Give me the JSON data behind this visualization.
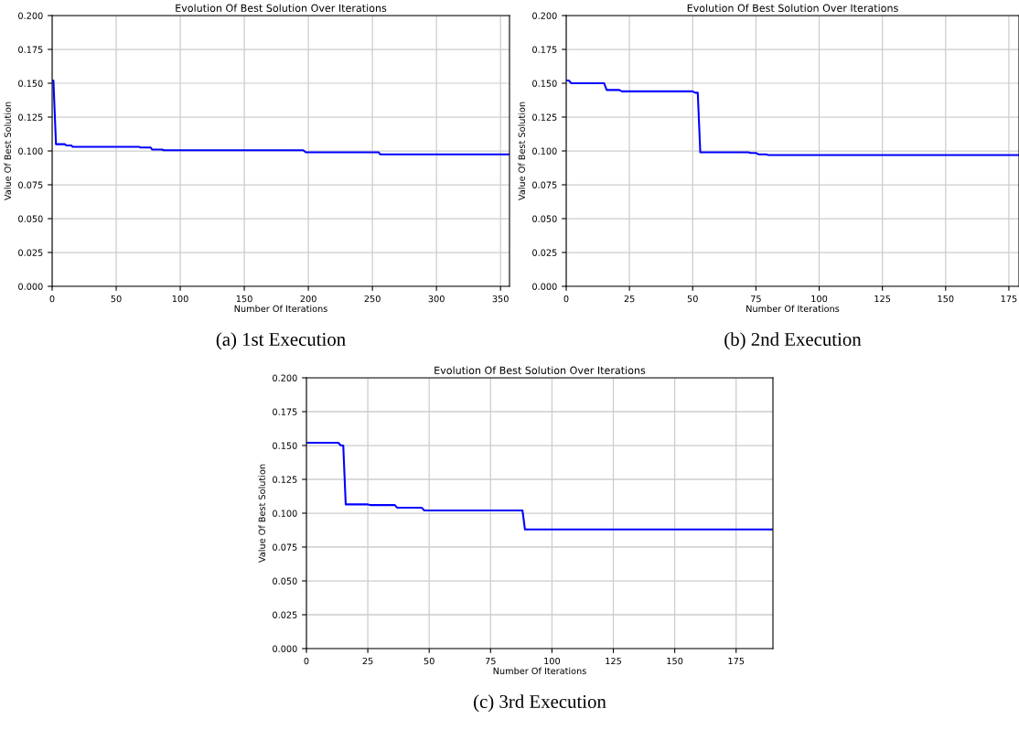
{
  "chart_data": [
    {
      "type": "line",
      "title": "Evolution Of Best Solution Over Iterations",
      "xlabel": "Number Of Iterations",
      "ylabel": "Value Of Best Solution",
      "xlim": [
        0,
        357
      ],
      "ylim": [
        0,
        0.2
      ],
      "xticks": [
        0,
        50,
        100,
        150,
        200,
        250,
        300,
        350
      ],
      "yticks": [
        {
          "value": 0,
          "label": "0.000"
        },
        {
          "value": 0.025,
          "label": "0.025"
        },
        {
          "value": 0.05,
          "label": "0.050"
        },
        {
          "value": 0.075,
          "label": "0.075"
        },
        {
          "value": 0.1,
          "label": "0.100"
        },
        {
          "value": 0.125,
          "label": "0.125"
        },
        {
          "value": 0.15,
          "label": "0.150"
        },
        {
          "value": 0.175,
          "label": "0.175"
        },
        {
          "value": 0.2,
          "label": "0.200"
        }
      ],
      "grid": true,
      "annotations": [
        "(a) 1st Execution"
      ],
      "series": [
        {
          "color": "#0000ff",
          "x": [
            0,
            1,
            3,
            10,
            11,
            15,
            16,
            68,
            69,
            77,
            78,
            86,
            87,
            196,
            198,
            255,
            256,
            357
          ],
          "values": [
            0.152,
            0.152,
            0.105,
            0.105,
            0.104,
            0.104,
            0.103,
            0.103,
            0.1025,
            0.1025,
            0.101,
            0.101,
            0.1005,
            0.1005,
            0.099,
            0.099,
            0.0975,
            0.0975
          ]
        }
      ]
    },
    {
      "type": "line",
      "title": "Evolution Of Best Solution Over Iterations",
      "xlabel": "Number Of Iterations",
      "ylabel": "Value Of Best Solution",
      "xlim": [
        0,
        179
      ],
      "ylim": [
        0,
        0.2
      ],
      "xticks": [
        0,
        25,
        50,
        75,
        100,
        125,
        150,
        175
      ],
      "yticks": [
        {
          "value": 0,
          "label": "0.000"
        },
        {
          "value": 0.025,
          "label": "0.025"
        },
        {
          "value": 0.05,
          "label": "0.050"
        },
        {
          "value": 0.075,
          "label": "0.075"
        },
        {
          "value": 0.1,
          "label": "0.100"
        },
        {
          "value": 0.125,
          "label": "0.125"
        },
        {
          "value": 0.15,
          "label": "0.150"
        },
        {
          "value": 0.175,
          "label": "0.175"
        },
        {
          "value": 0.2,
          "label": "0.200"
        }
      ],
      "grid": true,
      "annotations": [
        "(b) 2nd Execution"
      ],
      "series": [
        {
          "color": "#0000ff",
          "x": [
            0,
            1,
            2,
            15,
            16,
            21,
            22,
            50,
            51,
            52,
            53,
            72,
            73,
            75,
            76,
            79,
            80,
            179
          ],
          "values": [
            0.152,
            0.152,
            0.15,
            0.15,
            0.145,
            0.145,
            0.144,
            0.144,
            0.143,
            0.143,
            0.099,
            0.099,
            0.0985,
            0.0985,
            0.0975,
            0.0975,
            0.097,
            0.097
          ]
        }
      ]
    },
    {
      "type": "line",
      "title": "Evolution Of Best Solution Over Iterations",
      "xlabel": "Number Of Iterations",
      "ylabel": "Value Of Best Solution",
      "xlim": [
        0,
        190
      ],
      "ylim": [
        0,
        0.2
      ],
      "xticks": [
        0,
        25,
        50,
        75,
        100,
        125,
        150,
        175
      ],
      "yticks": [
        {
          "value": 0,
          "label": "0.000"
        },
        {
          "value": 0.025,
          "label": "0.025"
        },
        {
          "value": 0.05,
          "label": "0.050"
        },
        {
          "value": 0.075,
          "label": "0.075"
        },
        {
          "value": 0.1,
          "label": "0.100"
        },
        {
          "value": 0.125,
          "label": "0.125"
        },
        {
          "value": 0.15,
          "label": "0.150"
        },
        {
          "value": 0.175,
          "label": "0.175"
        },
        {
          "value": 0.2,
          "label": "0.200"
        }
      ],
      "grid": true,
      "annotations": [
        "(c) 3rd Execution"
      ],
      "series": [
        {
          "color": "#0000ff",
          "x": [
            0,
            13,
            14,
            15,
            16,
            25,
            26,
            36,
            37,
            47,
            48,
            88,
            89,
            190
          ],
          "values": [
            0.152,
            0.152,
            0.15,
            0.15,
            0.1065,
            0.1065,
            0.106,
            0.106,
            0.104,
            0.104,
            0.102,
            0.102,
            0.088,
            0.088
          ]
        }
      ]
    }
  ]
}
